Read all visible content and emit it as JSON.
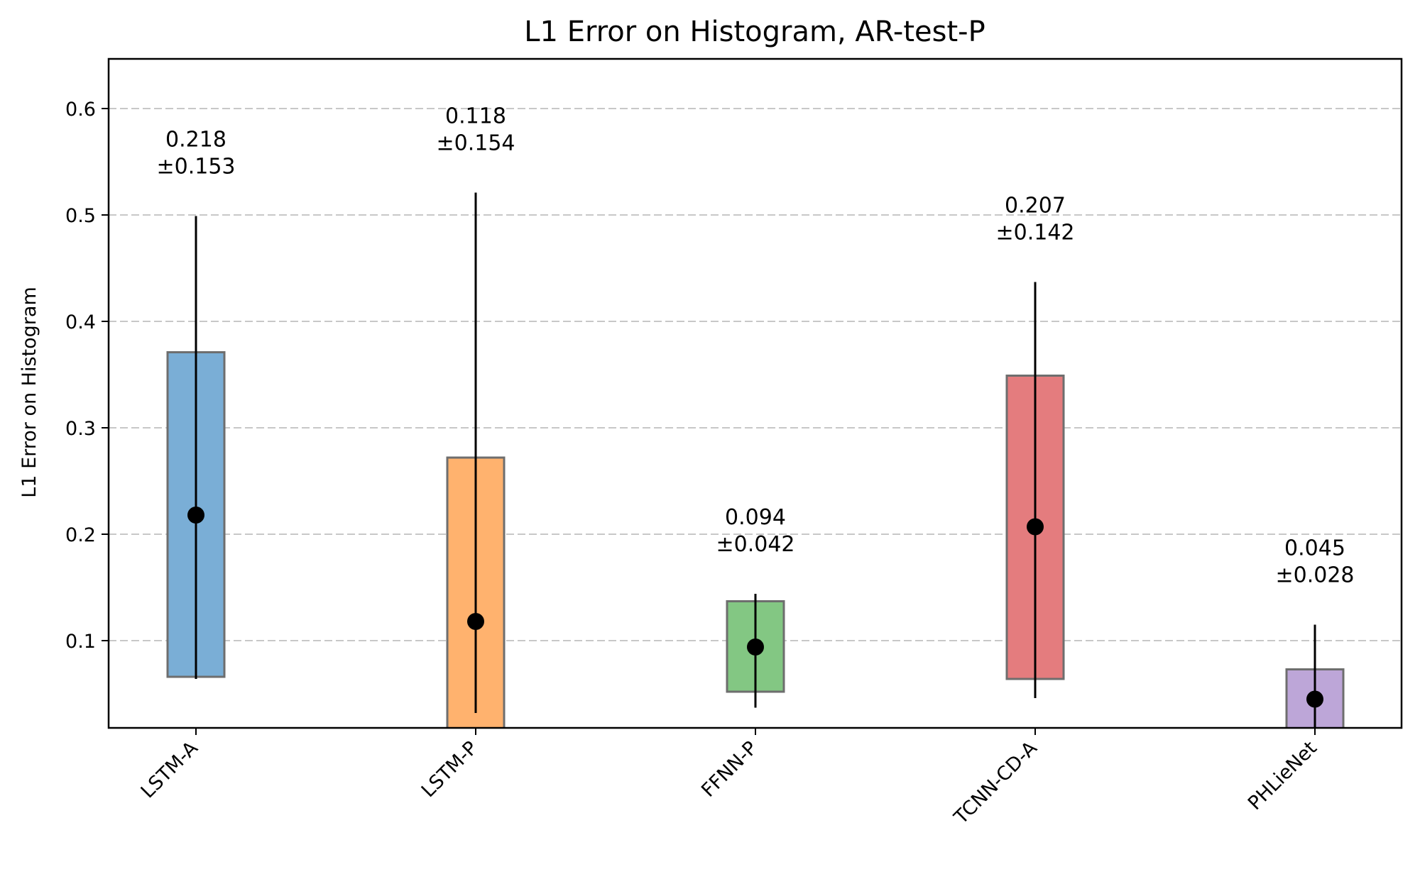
{
  "chart_data": {
    "type": "bar",
    "title": "L1 Error on Histogram, AR-test-P",
    "xlabel": "",
    "ylabel": "L1 Error on Histogram",
    "ylim": [
      0.018,
      0.647
    ],
    "yticks": [
      0.1,
      0.2,
      0.3,
      0.4,
      0.5,
      0.6
    ],
    "ytick_labels": [
      "0.1",
      "0.2",
      "0.3",
      "0.4",
      "0.5",
      "0.6"
    ],
    "grid": {
      "axis": "y",
      "style": "dashed",
      "color": "#c8c8c8"
    },
    "categories": [
      "LSTM-A",
      "LSTM-P",
      "FFNN-P",
      "TCNN-CD-A",
      "PHLieNet"
    ],
    "series": [
      {
        "name": "mean",
        "values": [
          0.218,
          0.118,
          0.094,
          0.207,
          0.045
        ]
      },
      {
        "name": "std",
        "values": [
          0.153,
          0.154,
          0.042,
          0.142,
          0.028
        ]
      },
      {
        "name": "bar_bottom",
        "values": [
          0.066,
          0.0,
          0.052,
          0.064,
          0.0
        ]
      },
      {
        "name": "bar_top",
        "values": [
          0.371,
          0.272,
          0.137,
          0.349,
          0.073
        ]
      },
      {
        "name": "whisker_low",
        "values": [
          0.064,
          0.032,
          0.037,
          0.046,
          0.0
        ]
      },
      {
        "name": "whisker_high",
        "values": [
          0.499,
          0.521,
          0.144,
          0.437,
          0.115
        ]
      }
    ],
    "colors": [
      "#7aaed6",
      "#ffb26e",
      "#83c783",
      "#e47c7e",
      "#bda6d8"
    ],
    "annotations": [
      {
        "line1": "0.218",
        "line2": "±0.153"
      },
      {
        "line1": "0.118",
        "line2": "±0.154"
      },
      {
        "line1": "0.094",
        "line2": "±0.042"
      },
      {
        "line1": "0.207",
        "line2": "±0.142"
      },
      {
        "line1": "0.045",
        "line2": "±0.028"
      }
    ],
    "legend": null
  }
}
